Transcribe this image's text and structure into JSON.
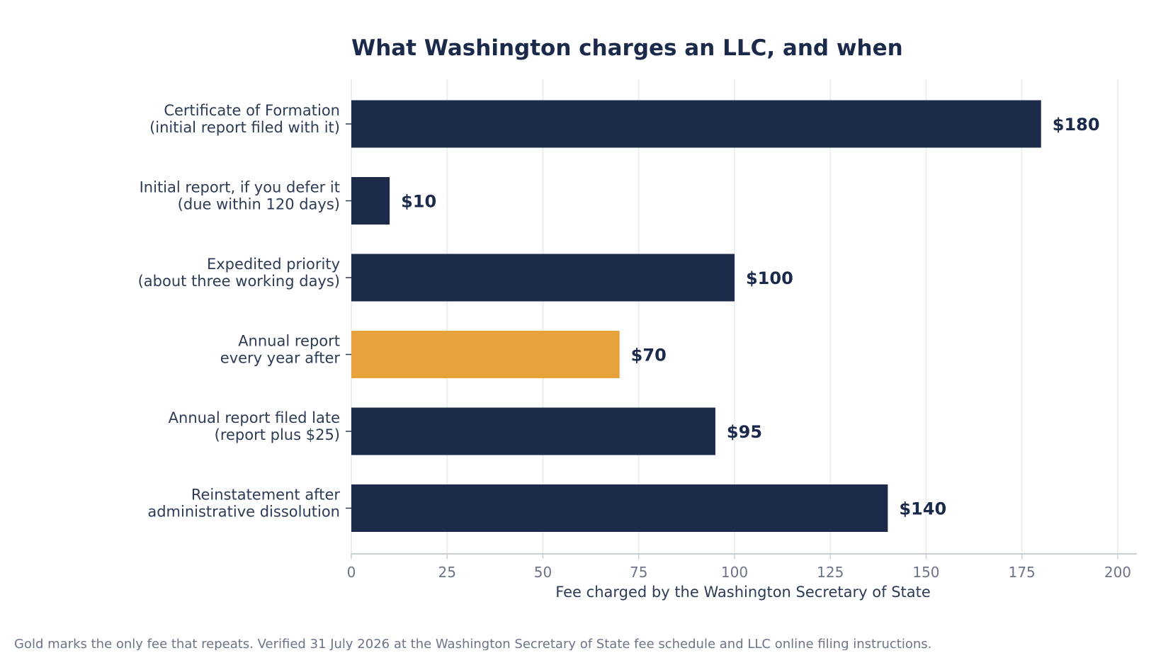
{
  "colors": {
    "bar_default": "#1d2b4b",
    "bar_highlight": "#e8a23b",
    "grid": "#eceef2",
    "axis": "#c9ced8",
    "title": "#1b2a4a"
  },
  "footnote": "Gold marks the only fee that repeats. Verified 31 July 2026 at the Washington Secretary of State fee schedule and LLC online filing instructions.",
  "chart_data": {
    "type": "bar",
    "orientation": "horizontal",
    "title": "What Washington charges an LLC, and when",
    "xlabel": "Fee charged by the Washington Secretary of State",
    "ylabel": "",
    "xlim": [
      0,
      205
    ],
    "xticks": [
      0,
      25,
      50,
      75,
      100,
      125,
      150,
      175,
      200
    ],
    "grid": "vertical",
    "highlight_index": 3,
    "categories": [
      [
        "Certificate of Formation",
        "(initial report filed with it)"
      ],
      [
        "Initial report, if you defer it",
        "(due within 120 days)"
      ],
      [
        "Expedited priority",
        "(about three working days)"
      ],
      [
        "Annual report",
        "every year after"
      ],
      [
        "Annual report filed late",
        "(report plus $25)"
      ],
      [
        "Reinstatement after",
        "administrative dissolution"
      ]
    ],
    "values": [
      180,
      10,
      100,
      70,
      95,
      140
    ],
    "value_labels": [
      "$180",
      "$10",
      "$100",
      "$70",
      "$95",
      "$140"
    ]
  }
}
